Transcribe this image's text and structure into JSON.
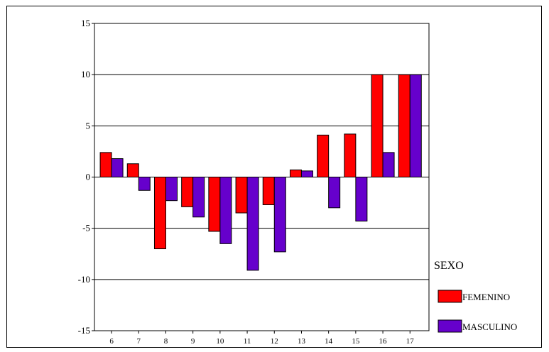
{
  "chart_data": {
    "type": "bar",
    "categories": [
      "6",
      "7",
      "8",
      "9",
      "10",
      "11",
      "12",
      "13",
      "14",
      "15",
      "16",
      "17"
    ],
    "series": [
      {
        "name": "FEMENINO",
        "color": "#ff0000",
        "values": [
          2.4,
          1.3,
          -7.0,
          -2.9,
          -5.3,
          -3.5,
          -2.7,
          0.7,
          4.1,
          4.2,
          10.0,
          10.0
        ]
      },
      {
        "name": "MASCULINO",
        "color": "#6600cc",
        "values": [
          1.8,
          -1.3,
          -2.3,
          -3.9,
          -6.5,
          -9.1,
          -7.3,
          0.6,
          -3.0,
          -4.3,
          2.4,
          10.0
        ]
      }
    ],
    "yticks": [
      "15",
      "10",
      "5",
      "0",
      "-5",
      "-10",
      "-15"
    ],
    "ylim": [
      -15,
      15
    ],
    "grid": true,
    "legend": {
      "title": "SEXO",
      "placement": "right"
    },
    "title": "",
    "xlabel": "",
    "ylabel": ""
  }
}
